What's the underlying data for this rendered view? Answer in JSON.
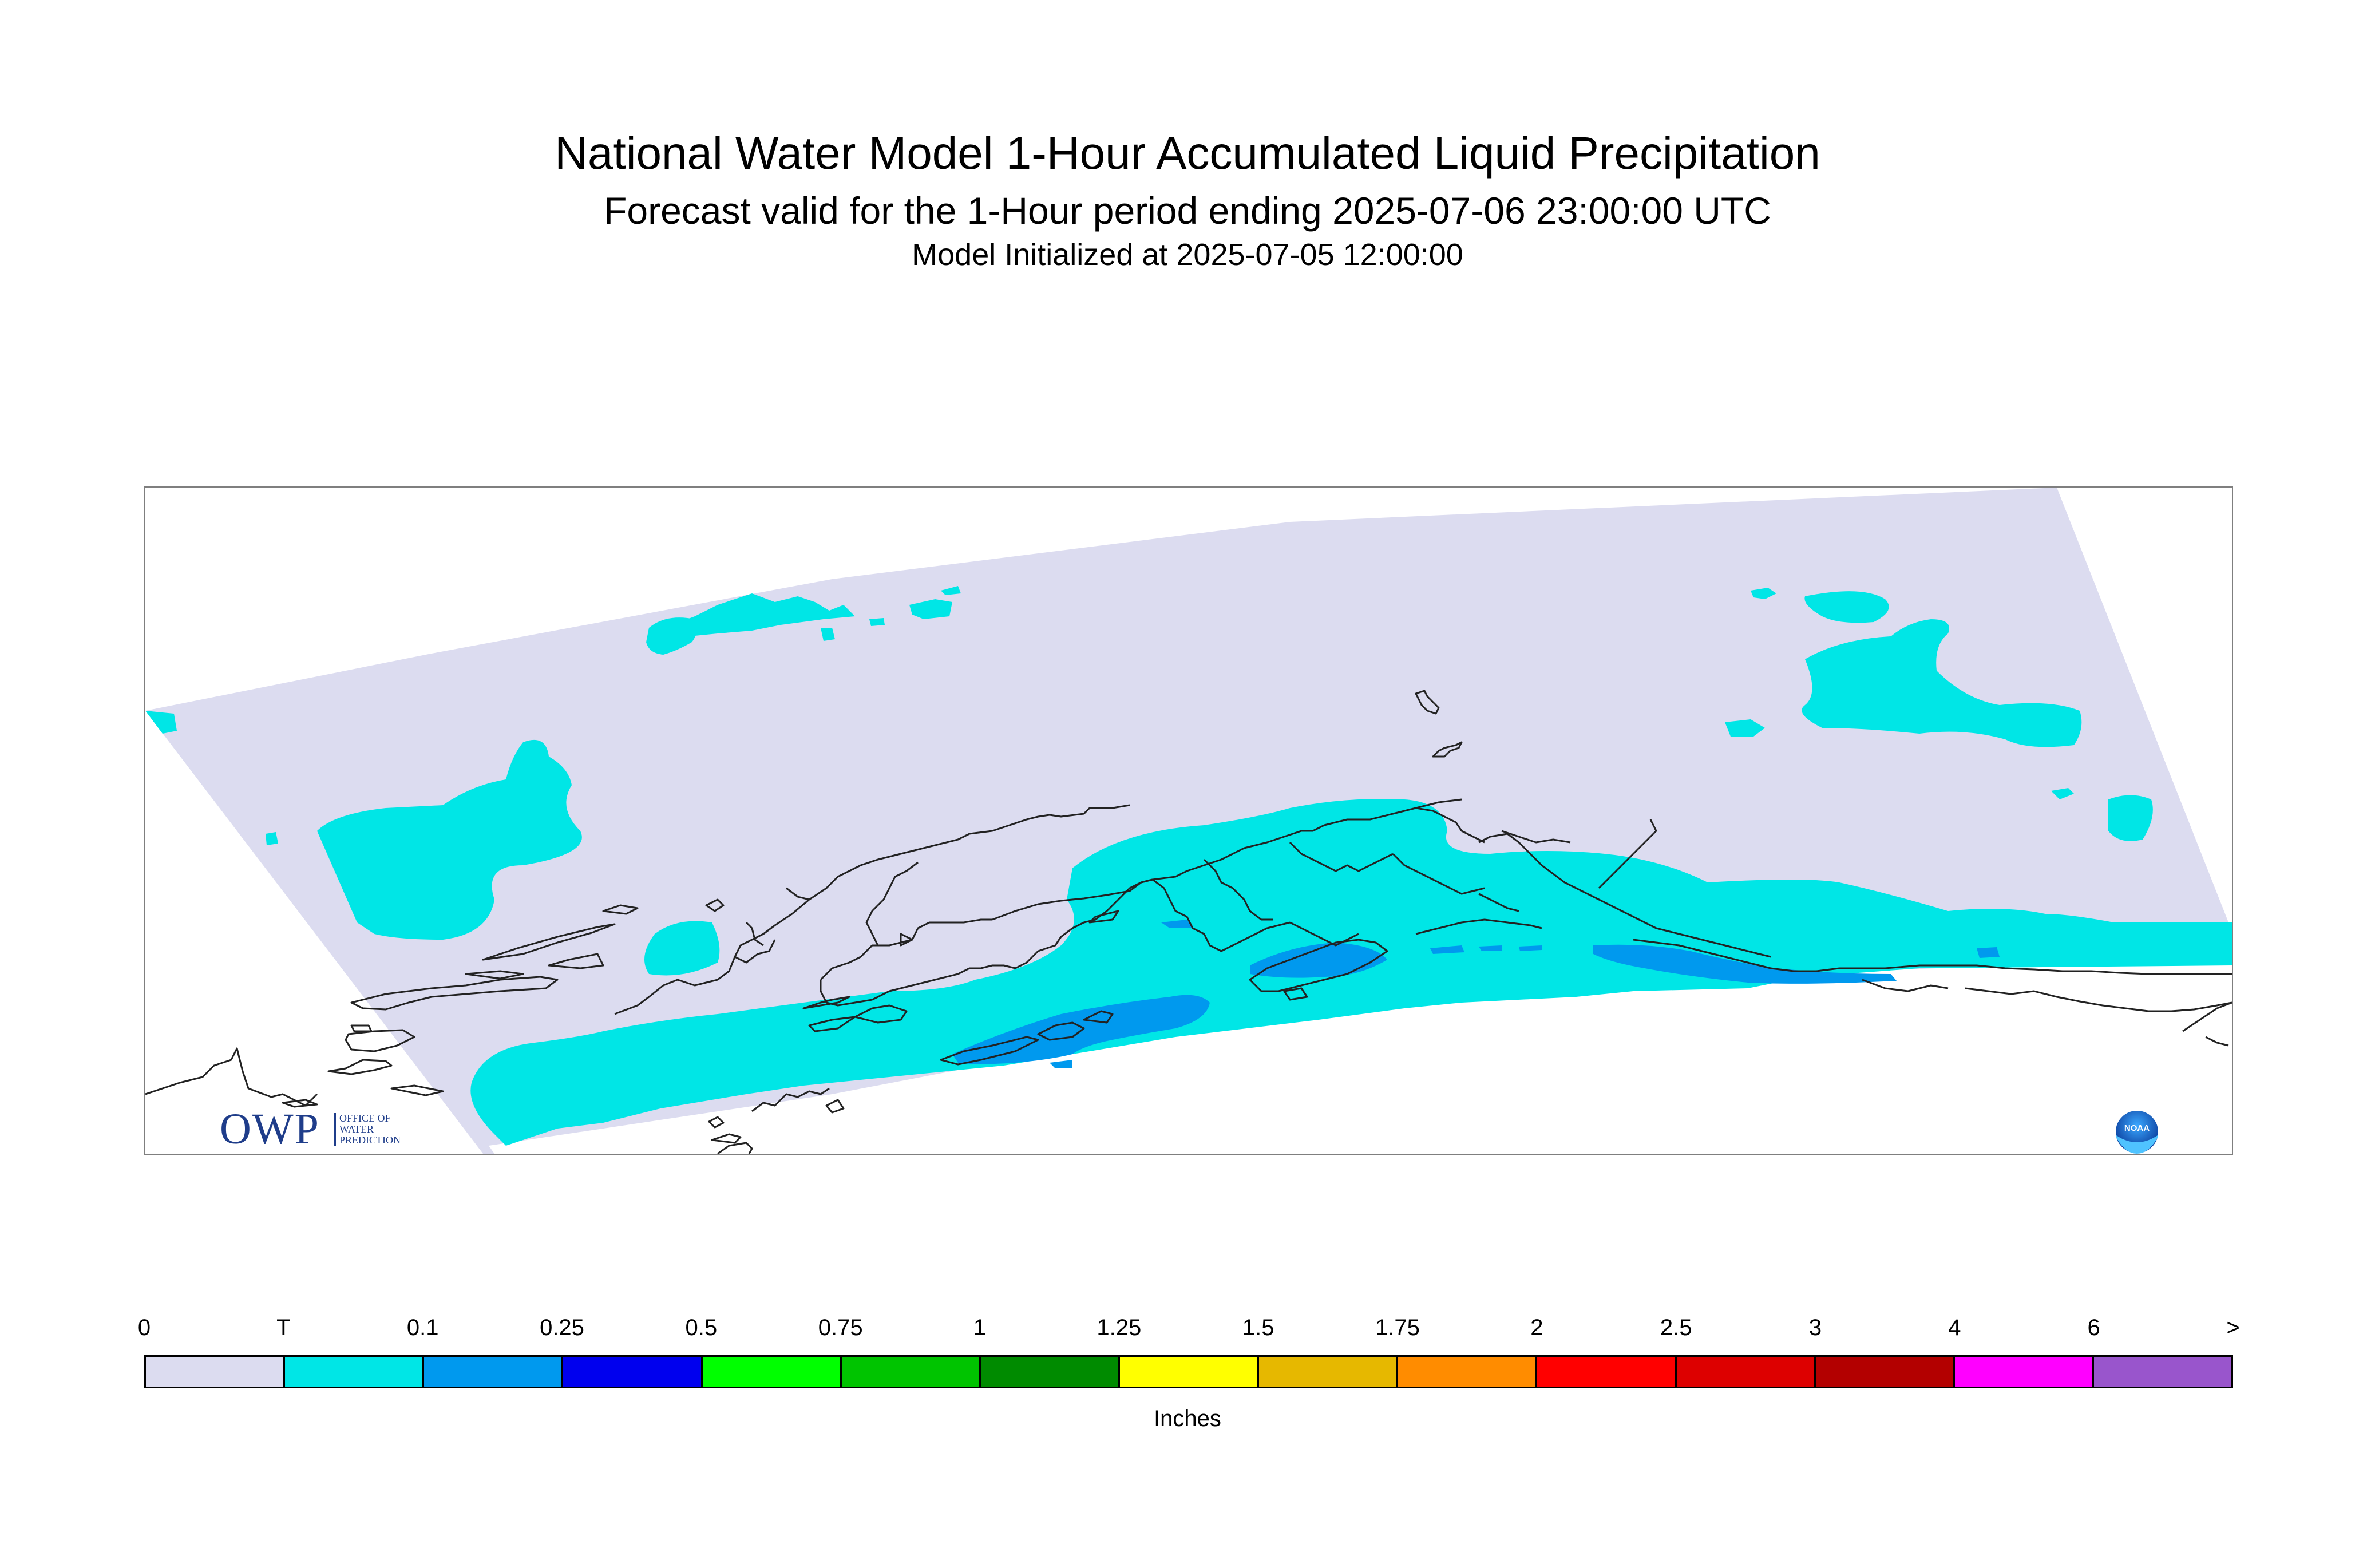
{
  "header": {
    "title": "National Water Model 1-Hour Accumulated Liquid Precipitation",
    "subtitle": "Forecast valid for the 1-Hour period ending 2025-07-06 23:00:00 UTC",
    "init": "Model Initialized at 2025-07-05 12:00:00"
  },
  "map": {
    "domain_color": "#dcdcf0",
    "precip_trace_color": "#00e6e6",
    "precip_01_color": "#0099ee",
    "coastline_color": "#222222",
    "logos": {
      "owp": {
        "name": "owp-logo",
        "text": "OWP",
        "subtext": "OFFICE OF WATER PREDICTION"
      },
      "noaa": {
        "name": "noaa-logo",
        "text": "NOAA"
      }
    }
  },
  "legend": {
    "ticks": [
      "0",
      "T",
      "0.1",
      "0.25",
      "0.5",
      "0.75",
      "1",
      "1.25",
      "1.5",
      "1.75",
      "2",
      "2.5",
      "3",
      "4",
      "6",
      ">"
    ],
    "colors": [
      "#dcdcf0",
      "#00e6e6",
      "#0099ee",
      "#0000ee",
      "#00ff00",
      "#00c400",
      "#008b00",
      "#ffff00",
      "#e6b800",
      "#ff8c00",
      "#ff0000",
      "#dd0000",
      "#b30000",
      "#ff00ff",
      "#9955cc"
    ],
    "unit": "Inches"
  }
}
